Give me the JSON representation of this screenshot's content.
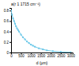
{
  "chart_data": {
    "type": "line",
    "title": "a(r 1 1715 cm⁻¹)",
    "xlabel": "d (µm)",
    "x": [
      0,
      50,
      100,
      150,
      200,
      250,
      300,
      350,
      400,
      500,
      600,
      700,
      800,
      900,
      1000,
      1100,
      1200,
      1400,
      1600,
      1800,
      2100,
      2500,
      3000
    ],
    "values": [
      0.8,
      0.72,
      0.65,
      0.6,
      0.55,
      0.5,
      0.46,
      0.43,
      0.4,
      0.34,
      0.29,
      0.25,
      0.21,
      0.18,
      0.15,
      0.13,
      0.11,
      0.08,
      0.06,
      0.04,
      0.025,
      0.01,
      0.003
    ],
    "color": "#6cc8e8",
    "marker": "square",
    "xlim": [
      0,
      3100
    ],
    "ylim": [
      0,
      0.85
    ],
    "xticks": [
      0,
      500,
      1000,
      1500,
      2000,
      2500,
      3000
    ],
    "yticks": [
      0,
      0.2,
      0.4,
      0.6,
      0.8
    ]
  }
}
